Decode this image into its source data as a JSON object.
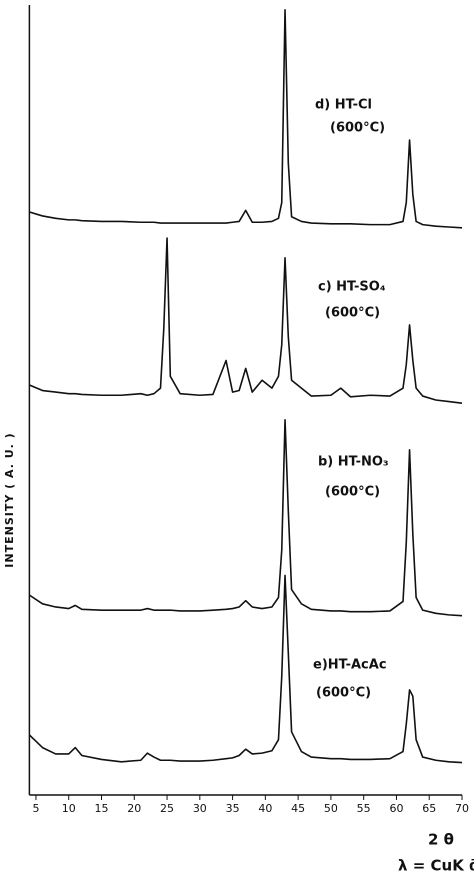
{
  "chart_data": {
    "type": "line",
    "ylabel": "INTENSITY ( A. U. )",
    "xlabel": "2 θ",
    "note": "λ = CuK ᾱ",
    "x": [
      4,
      6,
      8,
      10,
      11,
      12,
      15,
      18,
      21,
      22,
      23,
      24,
      24.5,
      25,
      25.5,
      27,
      30,
      32,
      34,
      35,
      36,
      37,
      38,
      39.5,
      41,
      42,
      42.5,
      43,
      43.5,
      44,
      45.5,
      47,
      50,
      51.5,
      53,
      56,
      59,
      61,
      61.5,
      62,
      62.5,
      63,
      64,
      66,
      68,
      70
    ],
    "series": [
      {
        "name": "d) HT-Cl",
        "color": "#111111",
        "values": [
          73.8,
          73.3,
          73.0,
          72.8,
          72.8,
          72.7,
          72.6,
          72.6,
          72.5,
          72.5,
          72.5,
          72.4,
          72.4,
          72.4,
          72.4,
          72.4,
          72.4,
          72.4,
          72.4,
          72.5,
          72.6,
          74.0,
          72.5,
          72.5,
          72.6,
          73.0,
          75,
          99.4,
          80,
          73.2,
          72.6,
          72.4,
          72.3,
          72.3,
          72.3,
          72.2,
          72.2,
          72.6,
          75,
          82.9,
          76,
          72.6,
          72.2,
          72.0,
          71.9,
          71.8
        ]
      },
      {
        "name": "c) HT-SO₄",
        "color": "#111111",
        "values": [
          51.9,
          51.2,
          51.0,
          50.8,
          50.8,
          50.7,
          50.6,
          50.6,
          50.8,
          50.6,
          50.8,
          51.5,
          59,
          70.5,
          53,
          50.8,
          50.6,
          50.7,
          55.0,
          51,
          51.2,
          54.0,
          51,
          52.5,
          51.5,
          53,
          57,
          68,
          58,
          52.5,
          51.5,
          50.5,
          50.6,
          51.5,
          50.4,
          50.6,
          50.5,
          51.5,
          54.5,
          59.5,
          55,
          51.5,
          50.5,
          50.0,
          49.8,
          49.6
        ]
      },
      {
        "name": "b) HT-NO₃",
        "color": "#111111",
        "values": [
          25.3,
          24.2,
          23.8,
          23.6,
          24.0,
          23.5,
          23.4,
          23.4,
          23.4,
          23.6,
          23.4,
          23.4,
          23.4,
          23.4,
          23.4,
          23.3,
          23.3,
          23.4,
          23.5,
          23.6,
          23.8,
          24.6,
          23.8,
          23.6,
          23.8,
          25.0,
          31,
          47.5,
          36,
          26,
          24.2,
          23.5,
          23.3,
          23.3,
          23.2,
          23.2,
          23.3,
          24.5,
          32,
          43.7,
          33,
          25,
          23.4,
          23.0,
          22.8,
          22.7
        ]
      },
      {
        "name": "e)HT-AcAc",
        "color": "#111111",
        "values": [
          7.6,
          6.0,
          5.2,
          5.2,
          6.0,
          5.0,
          4.5,
          4.2,
          4.4,
          5.3,
          4.8,
          4.4,
          4.4,
          4.4,
          4.4,
          4.3,
          4.3,
          4.4,
          4.6,
          4.7,
          5.0,
          5.8,
          5.2,
          5.3,
          5.6,
          7.0,
          15,
          27.8,
          18,
          8,
          5.5,
          4.8,
          4.6,
          4.6,
          4.5,
          4.5,
          4.6,
          5.5,
          9,
          13.3,
          12.5,
          7,
          4.8,
          4.4,
          4.2,
          4.1
        ]
      }
    ],
    "annotations": [
      "(600°C)",
      "(600°C)",
      "(600°C)",
      "(600°C)"
    ],
    "xlim": [
      4,
      70
    ],
    "xticks": [
      5,
      10,
      15,
      20,
      25,
      30,
      35,
      40,
      45,
      50,
      55,
      60,
      65,
      70
    ],
    "ylim": [
      0,
      100
    ]
  }
}
